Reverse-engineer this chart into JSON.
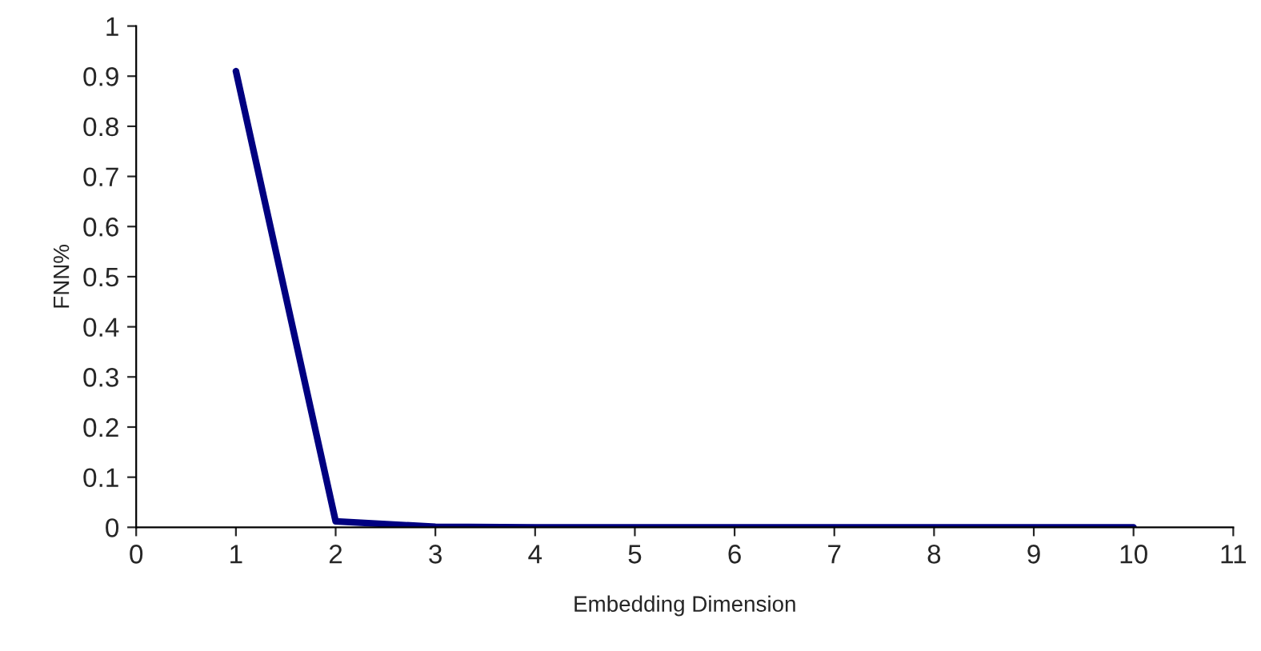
{
  "chart_data": {
    "type": "line",
    "xlabel": "Embedding Dimension",
    "ylabel": "FNN%",
    "x": [
      1,
      2,
      3,
      4,
      5,
      6,
      7,
      8,
      9,
      10
    ],
    "series": [
      {
        "color": "#000080",
        "values": [
          0.91,
          0.012,
          0.001,
          0,
          0,
          0,
          0,
          0,
          0,
          0
        ]
      }
    ],
    "xlim": [
      0,
      11
    ],
    "xticks": [
      0,
      1,
      2,
      3,
      4,
      5,
      6,
      7,
      8,
      9,
      10,
      11
    ],
    "ylim": [
      0,
      1
    ],
    "yticks": [
      0,
      0.1,
      0.2,
      0.3,
      0.4,
      0.5,
      0.6,
      0.7,
      0.8,
      0.9,
      1
    ],
    "grid": false,
    "legend": false,
    "marker": "none",
    "line_style": "solid"
  }
}
